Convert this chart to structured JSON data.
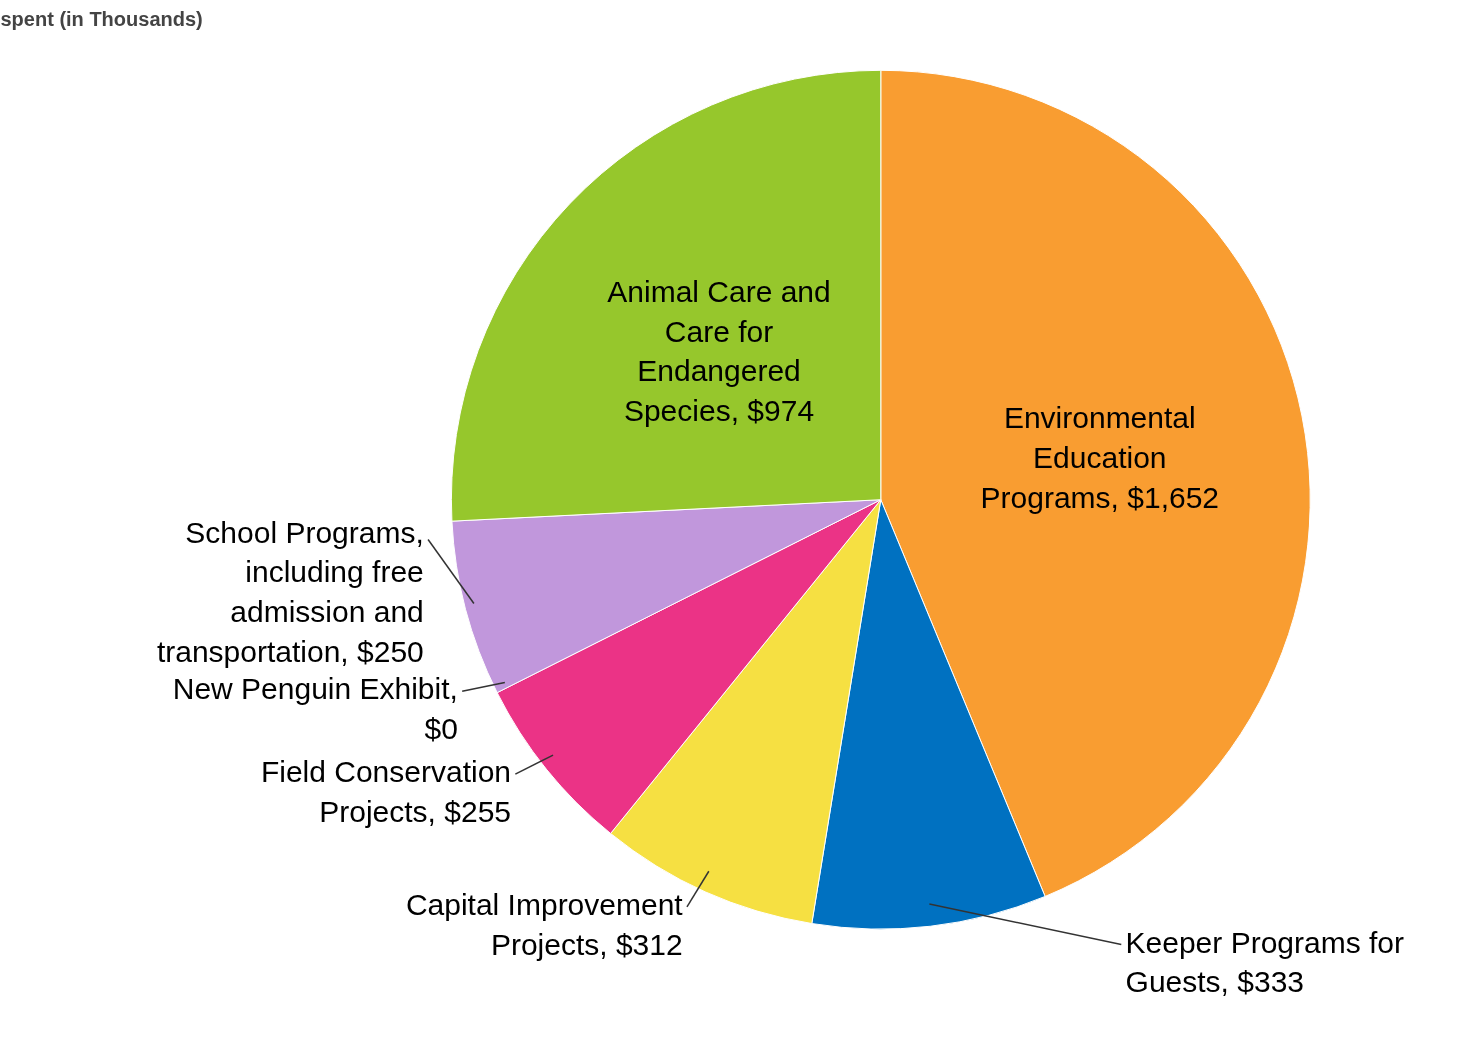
{
  "chart_data": {
    "type": "pie",
    "title": "spent (in Thousands)",
    "categories": [
      "Environmental Education Programs",
      "Keeper Programs for Guests",
      "Capital Improvement Projects",
      "Field Conservation Projects",
      "New Penguin Exhibit",
      "School Programs, including free admission and transportation",
      "Animal Care and Care for Endangered Species"
    ],
    "values": [
      1652,
      333,
      312,
      255,
      0,
      250,
      974
    ],
    "value_labels": [
      "$1,652",
      "$333",
      "$312",
      "$255",
      "$0",
      "$250",
      "$974"
    ],
    "colors": [
      "#f99d31",
      "#0071c1",
      "#f6e042",
      "#eb3386",
      "#d02090",
      "#c197dc",
      "#96c72c"
    ]
  }
}
